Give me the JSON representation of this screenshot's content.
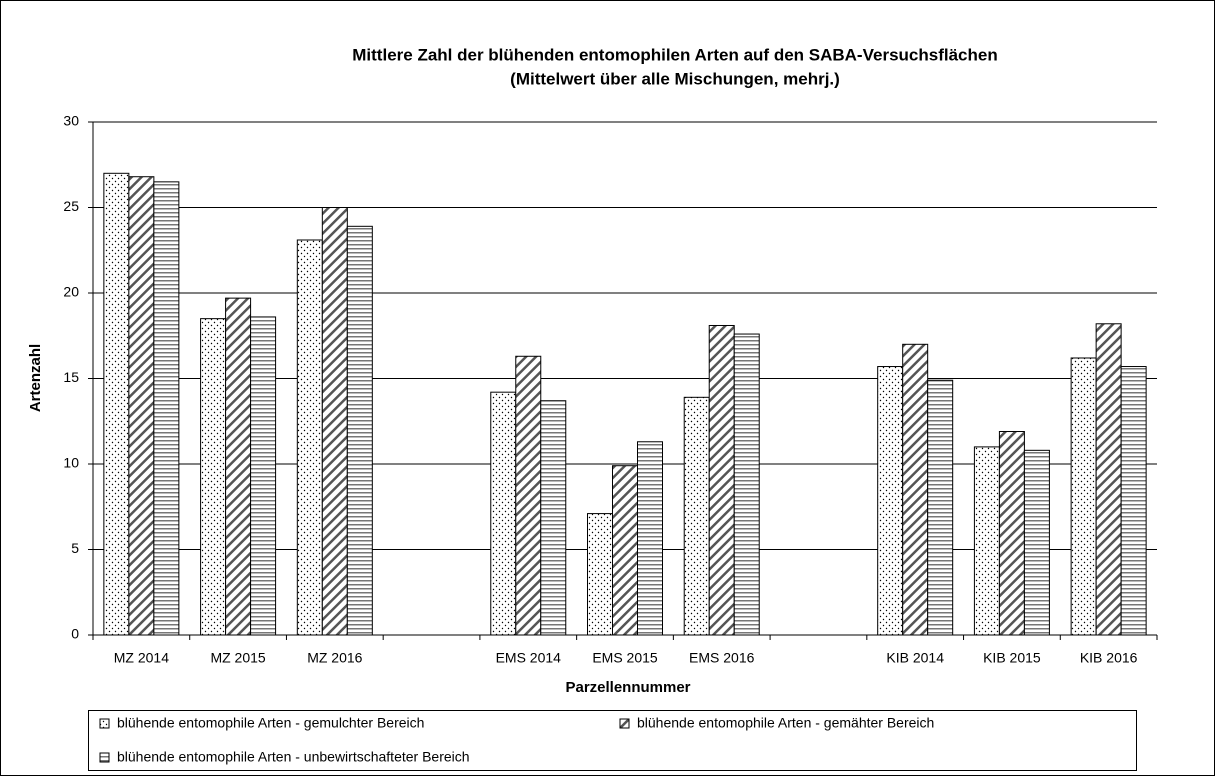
{
  "chart_data": {
    "type": "bar",
    "title": "Mittlere Zahl der blühenden entomophilen Arten auf den SABA-Versuchsflächen",
    "subtitle": "(Mittelwert über alle Mischungen, mehrj.)",
    "x_label": "Parzellennummer",
    "y_label": "Artenzahl",
    "categories": [
      "MZ 2014",
      "MZ 2015",
      "MZ 2016",
      null,
      "EMS 2014",
      "EMS 2015",
      "EMS 2016",
      null,
      "KIB 2014",
      "KIB 2015",
      "KIB 2016"
    ],
    "series": [
      {
        "name": "blühende entomophile Arten - gemulchter Bereich",
        "color": "#000000",
        "pattern": "dots",
        "values": [
          27.0,
          18.5,
          23.1,
          null,
          14.2,
          7.1,
          13.9,
          null,
          15.7,
          11.0,
          16.2
        ]
      },
      {
        "name": "blühende entomophile Arten - gemähter Bereich",
        "color": "#000000",
        "pattern": "diagonal",
        "values": [
          26.8,
          19.7,
          25.0,
          null,
          16.3,
          9.9,
          18.1,
          null,
          17.0,
          11.9,
          18.2
        ]
      },
      {
        "name": "blühende entomophile Arten - unbewirtschafteter Bereich",
        "color": "#000000",
        "pattern": "horizontal",
        "values": [
          26.5,
          18.6,
          23.9,
          null,
          13.7,
          11.3,
          17.6,
          null,
          14.9,
          10.8,
          15.7
        ]
      }
    ],
    "ylim": [
      0,
      30
    ],
    "yticks": [
      0,
      5,
      10,
      15,
      20,
      25,
      30
    ],
    "grid": true,
    "legend": "bottom"
  }
}
